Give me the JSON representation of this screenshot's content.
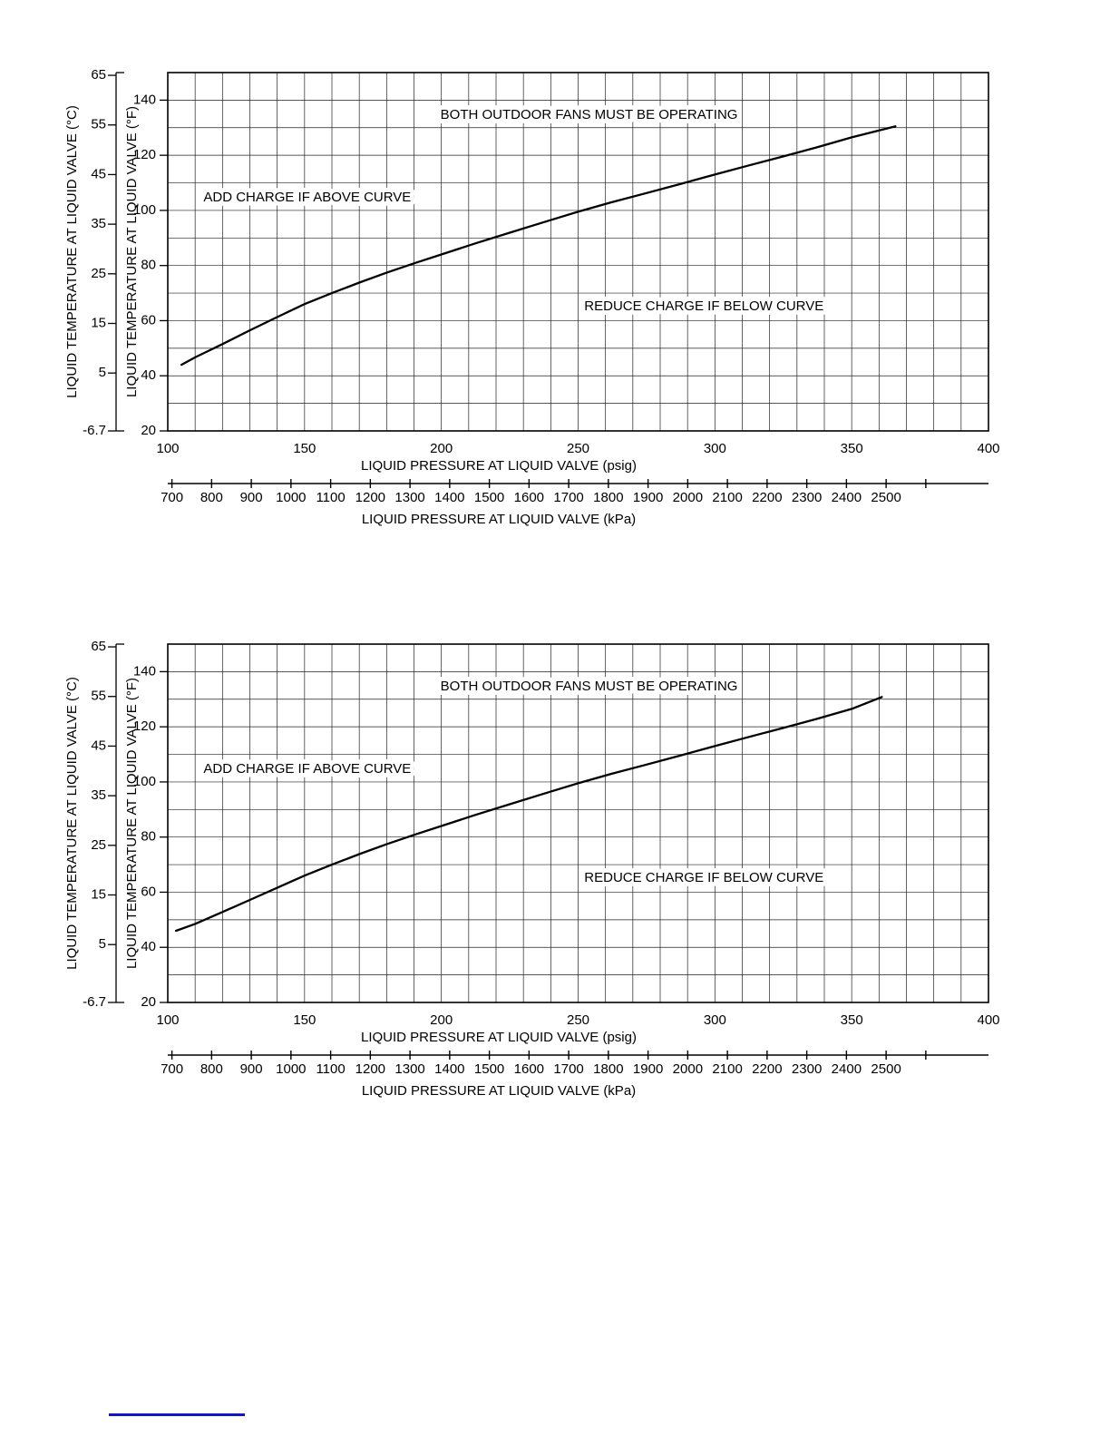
{
  "chart_data": [
    {
      "type": "line",
      "title": "",
      "legend": "none",
      "grid": true,
      "x_psig": {
        "label": "LIQUID PRESSURE AT LIQUID VALVE (psig)",
        "min": 100,
        "max": 400,
        "grid_step": 10,
        "ticks": [
          "100",
          "150",
          "200",
          "250",
          "300",
          "350",
          "400"
        ]
      },
      "x_kpa": {
        "label": "LIQUID PRESSURE AT LIQUID VALVE (kPa)",
        "kpa_per_psig": 6.895,
        "ticks": [
          "700",
          "800",
          "900",
          "1000",
          "1100",
          "1200",
          "1300",
          "1400",
          "1500",
          "1600",
          "1700",
          "1800",
          "1900",
          "2000",
          "2100",
          "2200",
          "2300",
          "2400",
          "2500"
        ],
        "extra_unlabeled_ticks": [
          "2600"
        ]
      },
      "y_f": {
        "label": "LIQUID TEMPERATURE AT LIQUID VALVE (°F)",
        "min": 20,
        "max": 150,
        "grid_step": 10,
        "ticks": [
          "140",
          "120",
          "100",
          "80",
          "60",
          "40",
          "20"
        ]
      },
      "y_c": {
        "label": "LIQUID TEMPERATURE AT LIQUID VALVE (°C)",
        "ticks": [
          "65",
          "55",
          "45",
          "35",
          "25",
          "15",
          "5",
          "-6.7"
        ]
      },
      "annotations": [
        {
          "text": "BOTH OUTDOOR FANS MUST BE OPERATING",
          "x_psig": 254,
          "y_f": 134.5
        },
        {
          "text": "ADD CHARGE IF ABOVE CURVE",
          "x_psig": 151,
          "y_f": 104.5
        },
        {
          "text": "REDUCE CHARGE IF BELOW CURVE",
          "x_psig": 296,
          "y_f": 65
        }
      ],
      "series": [
        {
          "name": "charge-curve",
          "points_psig_f": [
            [
              105,
              44
            ],
            [
              110,
              46.7
            ],
            [
              120,
              51.5
            ],
            [
              130,
              56.5
            ],
            [
              140,
              61.3
            ],
            [
              150,
              66
            ],
            [
              160,
              70
            ],
            [
              170,
              73.8
            ],
            [
              180,
              77.4
            ],
            [
              190,
              80.8
            ],
            [
              200,
              84
            ],
            [
              212,
              87.9
            ],
            [
              225,
              91.9
            ],
            [
              237,
              95.6
            ],
            [
              250,
              99.5
            ],
            [
              262,
              102.9
            ],
            [
              275,
              106.3
            ],
            [
              287,
              109.5
            ],
            [
              300,
              113
            ],
            [
              312,
              116.2
            ],
            [
              325,
              119.6
            ],
            [
              337,
              122.8
            ],
            [
              350,
              126.5
            ],
            [
              366,
              130.5
            ]
          ]
        }
      ]
    },
    {
      "type": "line",
      "title": "",
      "legend": "none",
      "grid": true,
      "x_psig": {
        "label": "LIQUID PRESSURE AT LIQUID VALVE (psig)",
        "min": 100,
        "max": 400,
        "grid_step": 10,
        "ticks": [
          "100",
          "150",
          "200",
          "250",
          "300",
          "350",
          "400"
        ]
      },
      "x_kpa": {
        "label": "LIQUID PRESSURE AT LIQUID VALVE (kPa)",
        "kpa_per_psig": 6.895,
        "ticks": [
          "700",
          "800",
          "900",
          "1000",
          "1100",
          "1200",
          "1300",
          "1400",
          "1500",
          "1600",
          "1700",
          "1800",
          "1900",
          "2000",
          "2100",
          "2200",
          "2300",
          "2400",
          "2500"
        ],
        "extra_unlabeled_ticks": [
          "2600"
        ]
      },
      "y_f": {
        "label": "LIQUID TEMPERATURE AT LIQUID VALVE (°F)",
        "min": 20,
        "max": 150,
        "grid_step": 10,
        "ticks": [
          "140",
          "120",
          "100",
          "80",
          "60",
          "40",
          "20"
        ]
      },
      "y_c": {
        "label": "LIQUID TEMPERATURE AT LIQUID VALVE (°C)",
        "ticks": [
          "65",
          "55",
          "45",
          "35",
          "25",
          "15",
          "5",
          "-6.7"
        ]
      },
      "annotations": [
        {
          "text": "BOTH OUTDOOR FANS MUST BE OPERATING",
          "x_psig": 254,
          "y_f": 134.5
        },
        {
          "text": "ADD CHARGE IF ABOVE CURVE",
          "x_psig": 151,
          "y_f": 104.5
        },
        {
          "text": "REDUCE CHARGE IF BELOW CURVE",
          "x_psig": 296,
          "y_f": 65
        }
      ],
      "series": [
        {
          "name": "charge-curve",
          "points_psig_f": [
            [
              103,
              46
            ],
            [
              110,
              48.5
            ],
            [
              120,
              52.8
            ],
            [
              130,
              57.2
            ],
            [
              140,
              61.6
            ],
            [
              150,
              66
            ],
            [
              160,
              70
            ],
            [
              170,
              73.8
            ],
            [
              180,
              77.4
            ],
            [
              190,
              80.8
            ],
            [
              200,
              84
            ],
            [
              212,
              87.9
            ],
            [
              225,
              91.9
            ],
            [
              237,
              95.6
            ],
            [
              250,
              99.5
            ],
            [
              262,
              102.9
            ],
            [
              275,
              106.3
            ],
            [
              287,
              109.5
            ],
            [
              300,
              113
            ],
            [
              312,
              116.2
            ],
            [
              325,
              119.6
            ],
            [
              337,
              122.8
            ],
            [
              350,
              126.5
            ],
            [
              361,
              130.8
            ]
          ]
        }
      ]
    }
  ],
  "footer": {
    "rule_color": "#1515c8"
  }
}
